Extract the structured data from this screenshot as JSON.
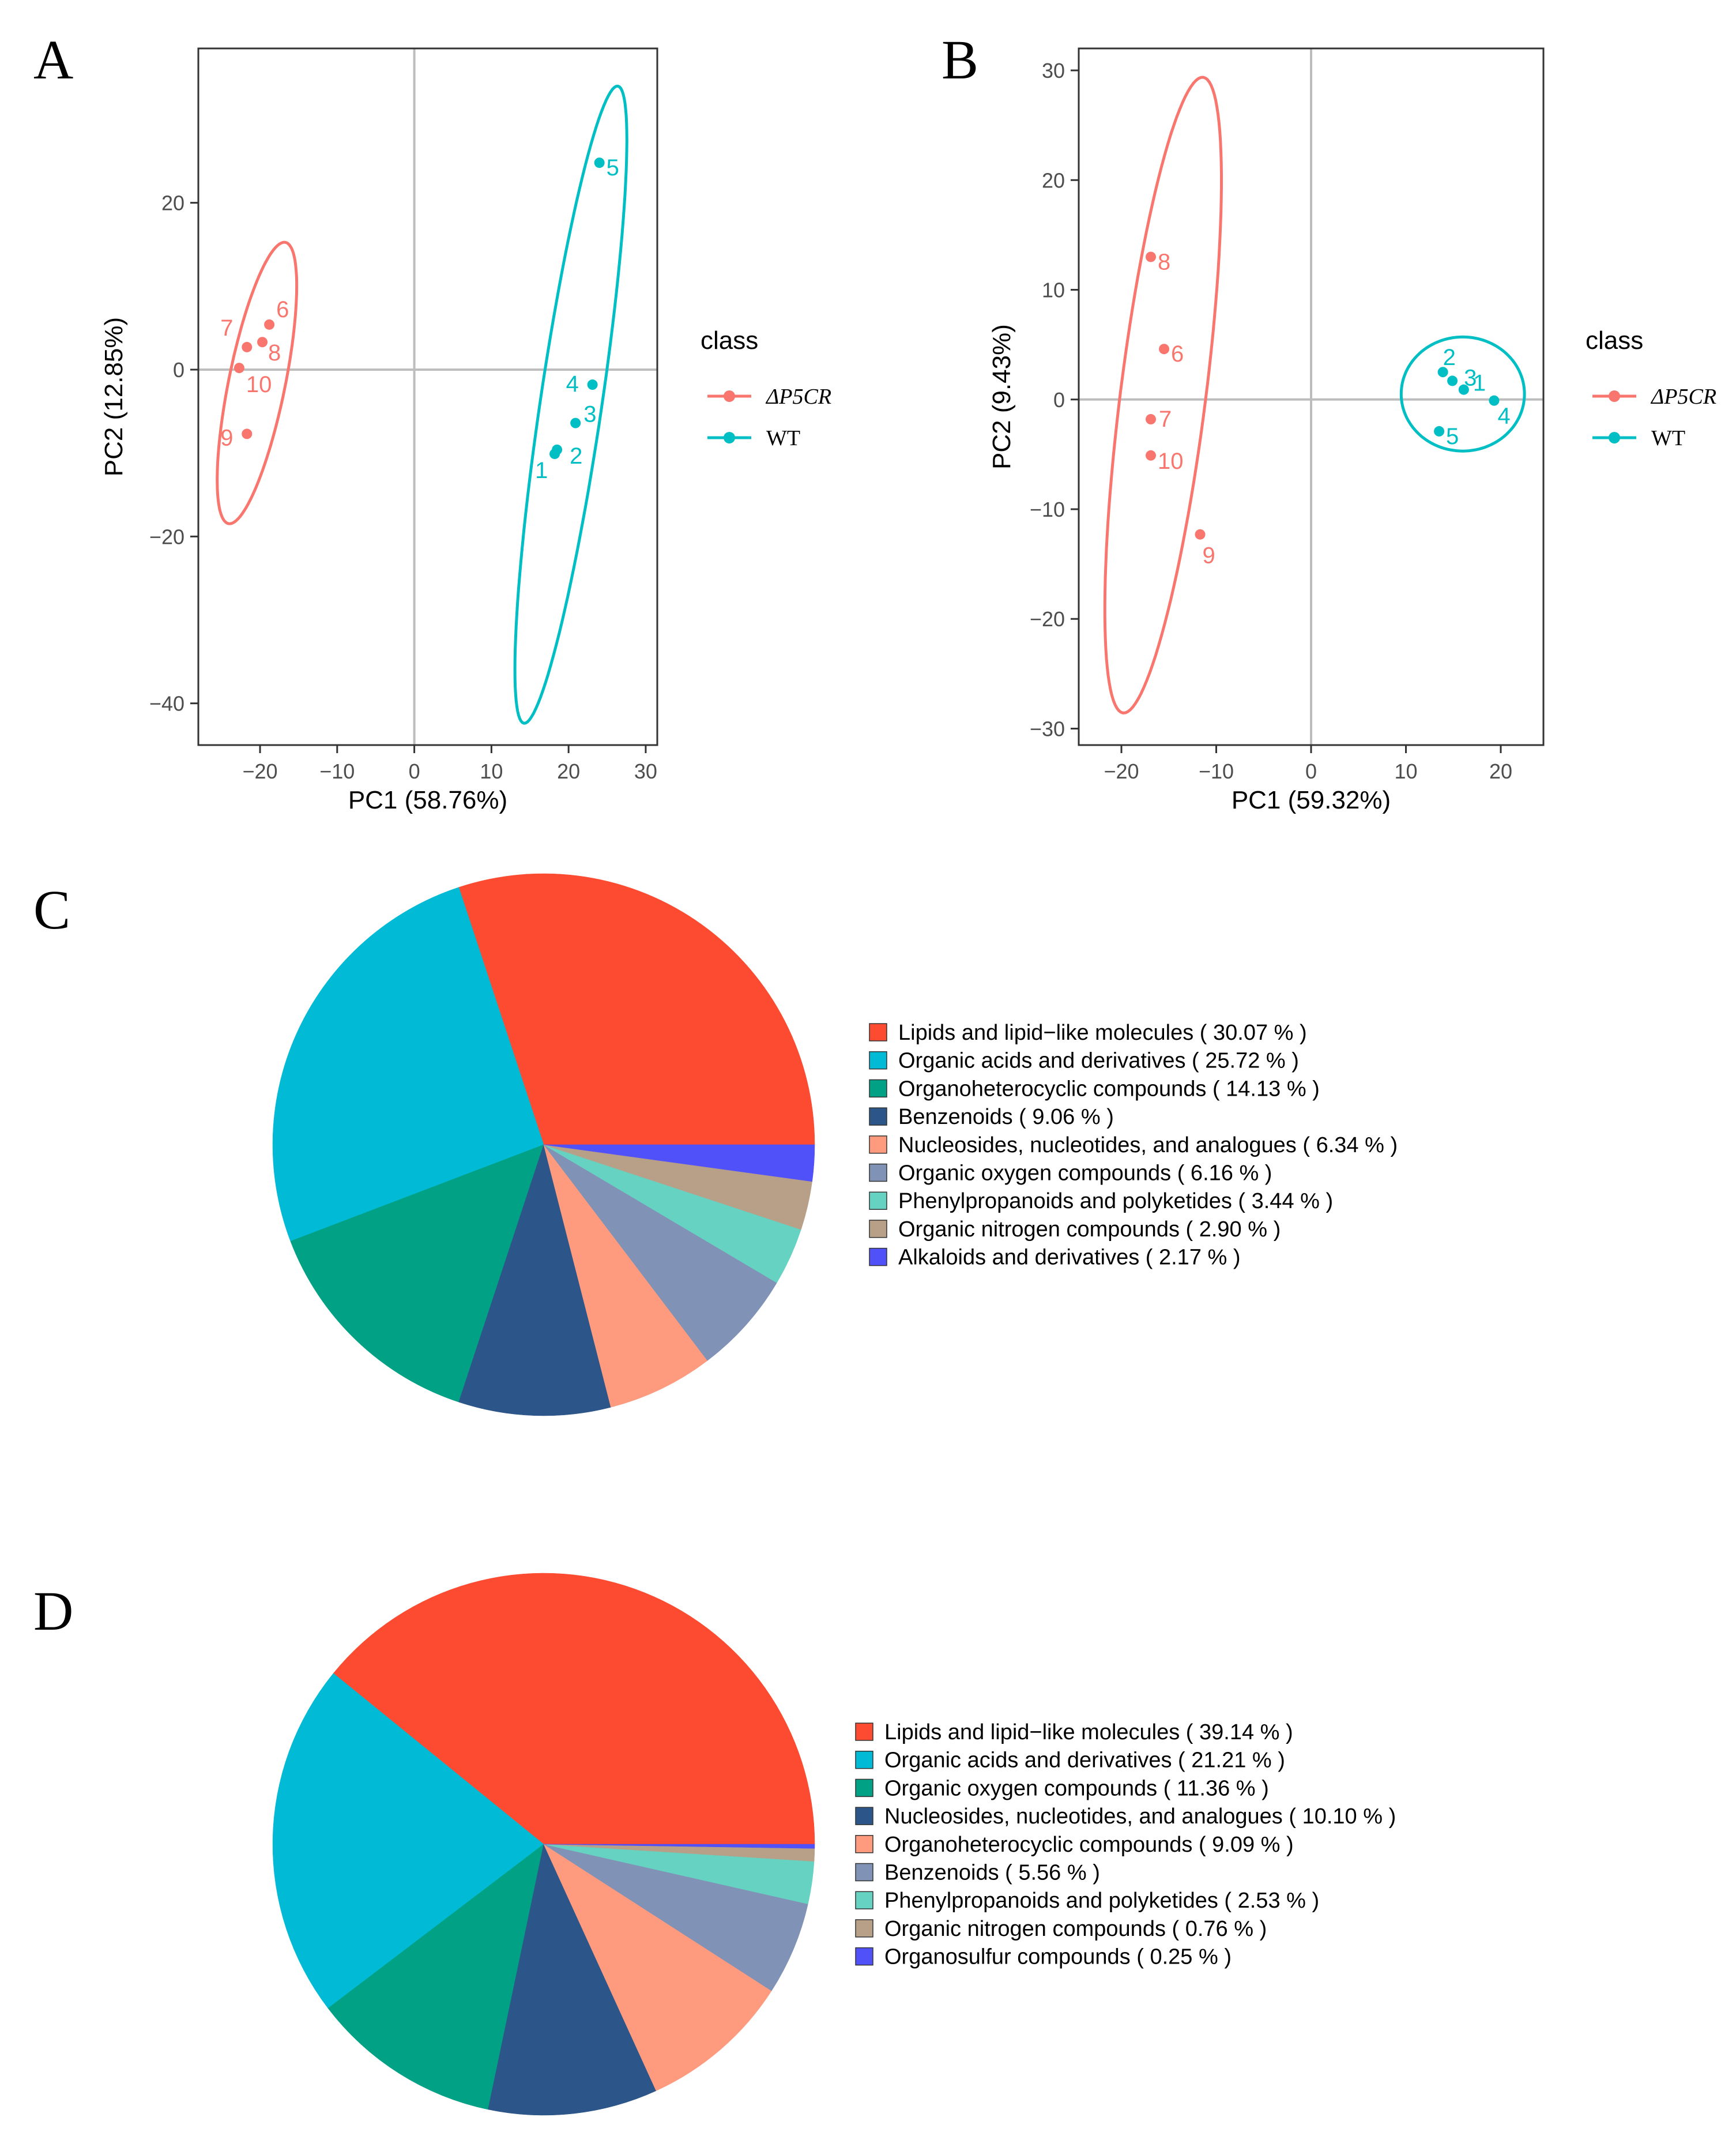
{
  "colors": {
    "dp5cr": "#f8766d",
    "wt": "#00bfc4",
    "axis": "#333333",
    "zero": "#bdbdbd",
    "tick_text": "#4d4d4d"
  },
  "chart_data": [
    {
      "panel": "A",
      "type": "scatter",
      "xlabel": "PC1 (58.76%)",
      "ylabel": "PC2 (12.85%)",
      "xlim": [
        -28,
        31.5
      ],
      "ylim": [
        -45,
        38.5
      ],
      "xticks": [
        -20,
        -10,
        0,
        10,
        20,
        30
      ],
      "yticks": [
        -40,
        -20,
        0,
        20
      ],
      "xtick_labels": [
        "−20",
        "−10",
        "0",
        "10",
        "20",
        "30"
      ],
      "ytick_labels": [
        "−40",
        "−20",
        "0",
        "20"
      ],
      "legend": {
        "title": "class",
        "entries": [
          "ΔP5CR",
          "WT"
        ]
      },
      "series": [
        {
          "name": "ΔP5CR",
          "color_key": "dp5cr",
          "points": [
            {
              "label": "6",
              "x": -18.8,
              "y": 5.4
            },
            {
              "label": "7",
              "x": -21.7,
              "y": 2.7
            },
            {
              "label": "8",
              "x": -19.7,
              "y": 3.3
            },
            {
              "label": "10",
              "x": -22.7,
              "y": 0.2
            },
            {
              "label": "9",
              "x": -21.7,
              "y": -7.7
            }
          ],
          "ellipse": {
            "cx": -20.4,
            "cy": -1.6,
            "rx": 17.2,
            "ry": 3.4,
            "angle_deg": 78.5
          }
        },
        {
          "name": "WT",
          "color_key": "wt",
          "points": [
            {
              "label": "5",
              "x": 24.0,
              "y": 24.8
            },
            {
              "label": "4",
              "x": 23.1,
              "y": -1.8
            },
            {
              "label": "3",
              "x": 20.9,
              "y": -6.4
            },
            {
              "label": "2",
              "x": 18.5,
              "y": -9.6
            },
            {
              "label": "1",
              "x": 18.2,
              "y": -10.1
            }
          ],
          "ellipse": {
            "cx": 20.3,
            "cy": -4.2,
            "rx": 38.6,
            "ry": 3.7,
            "angle_deg": 81.6
          }
        }
      ]
    },
    {
      "panel": "B",
      "type": "scatter",
      "xlabel": "PC1 (59.32%)",
      "ylabel": "PC2 (9.43%)",
      "xlim": [
        -24.5,
        24.5
      ],
      "ylim": [
        -31.5,
        32
      ],
      "xticks": [
        -20,
        -10,
        0,
        10,
        20
      ],
      "yticks": [
        -30,
        -20,
        -10,
        0,
        10,
        20,
        30
      ],
      "xtick_labels": [
        "−20",
        "−10",
        "0",
        "10",
        "20"
      ],
      "ytick_labels": [
        "−30",
        "−20",
        "−10",
        "0",
        "10",
        "20",
        "30"
      ],
      "legend": {
        "title": "class",
        "entries": [
          "ΔP5CR",
          "WT"
        ]
      },
      "series": [
        {
          "name": "ΔP5CR",
          "color_key": "dp5cr",
          "points": [
            {
              "label": "8",
              "x": -16.9,
              "y": 13.0
            },
            {
              "label": "6",
              "x": -15.5,
              "y": 4.6
            },
            {
              "label": "7",
              "x": -16.9,
              "y": -1.8
            },
            {
              "label": "10",
              "x": -16.9,
              "y": -5.1
            },
            {
              "label": "9",
              "x": -11.7,
              "y": -12.3
            }
          ],
          "ellipse": {
            "cx": -15.6,
            "cy": 0.4,
            "rx": 29.2,
            "ry": 3.9,
            "angle_deg": 82.8
          }
        },
        {
          "name": "WT",
          "color_key": "wt",
          "points": [
            {
              "label": "2",
              "x": 13.9,
              "y": 2.5
            },
            {
              "label": "3",
              "x": 14.9,
              "y": 1.7
            },
            {
              "label": "1",
              "x": 16.1,
              "y": 0.9
            },
            {
              "label": "4",
              "x": 19.3,
              "y": -0.1
            },
            {
              "label": "5",
              "x": 13.5,
              "y": -2.9
            }
          ],
          "ellipse": {
            "cx": 16.0,
            "cy": 0.5,
            "rx": 6.5,
            "ry": 5.2,
            "angle_deg": 0
          }
        }
      ]
    },
    {
      "panel": "C",
      "type": "pie",
      "title": "",
      "slices": [
        {
          "label": "Lipids and lipid−like molecules",
          "pct_text": "( 30.07 % )",
          "value": 30.07,
          "color": "#fc4b31"
        },
        {
          "label": "Organic acids and derivatives",
          "pct_text": "( 25.72 % )",
          "value": 25.72,
          "color": "#00bad6"
        },
        {
          "label": "Organoheterocyclic compounds",
          "pct_text": "( 14.13 % )",
          "value": 14.13,
          "color": "#00a184"
        },
        {
          "label": "Benzenoids",
          "pct_text": "( 9.06 % )",
          "value": 9.06,
          "color": "#2c5589"
        },
        {
          "label": "Nucleosides, nucleotides, and analogues",
          "pct_text": "( 6.34 % )",
          "value": 6.34,
          "color": "#fe9b7e"
        },
        {
          "label": "Organic oxygen compounds",
          "pct_text": "( 6.16 % )",
          "value": 6.16,
          "color": "#8092b5"
        },
        {
          "label": "Phenylpropanoids and polyketides",
          "pct_text": "( 3.44 % )",
          "value": 3.44,
          "color": "#66d2c2"
        },
        {
          "label": "Organic nitrogen compounds",
          "pct_text": "( 2.90 % )",
          "value": 2.9,
          "color": "#b79f88"
        },
        {
          "label": "Alkaloids and derivatives",
          "pct_text": "( 2.17 % )",
          "value": 2.17,
          "color": "#5151fa"
        }
      ]
    },
    {
      "panel": "D",
      "type": "pie",
      "title": "",
      "slices": [
        {
          "label": "Lipids and lipid−like molecules",
          "pct_text": "( 39.14 % )",
          "value": 39.14,
          "color": "#fc4b31"
        },
        {
          "label": "Organic acids and derivatives",
          "pct_text": "( 21.21 % )",
          "value": 21.21,
          "color": "#00bad6"
        },
        {
          "label": "Organic oxygen compounds",
          "pct_text": "( 11.36 % )",
          "value": 11.36,
          "color": "#00a184"
        },
        {
          "label": "Nucleosides, nucleotides, and analogues",
          "pct_text": "( 10.10 % )",
          "value": 10.1,
          "color": "#2c5589"
        },
        {
          "label": "Organoheterocyclic compounds",
          "pct_text": "( 9.09 % )",
          "value": 9.09,
          "color": "#fe9b7e"
        },
        {
          "label": "Benzenoids",
          "pct_text": "( 5.56 % )",
          "value": 5.56,
          "color": "#8092b5"
        },
        {
          "label": "Phenylpropanoids and polyketides",
          "pct_text": "( 2.53 % )",
          "value": 2.53,
          "color": "#66d2c2"
        },
        {
          "label": "Organic nitrogen compounds",
          "pct_text": "( 0.76 % )",
          "value": 0.76,
          "color": "#b79f88"
        },
        {
          "label": "Organosulfur compounds",
          "pct_text": "( 0.25 % )",
          "value": 0.25,
          "color": "#5151fa"
        }
      ]
    }
  ]
}
